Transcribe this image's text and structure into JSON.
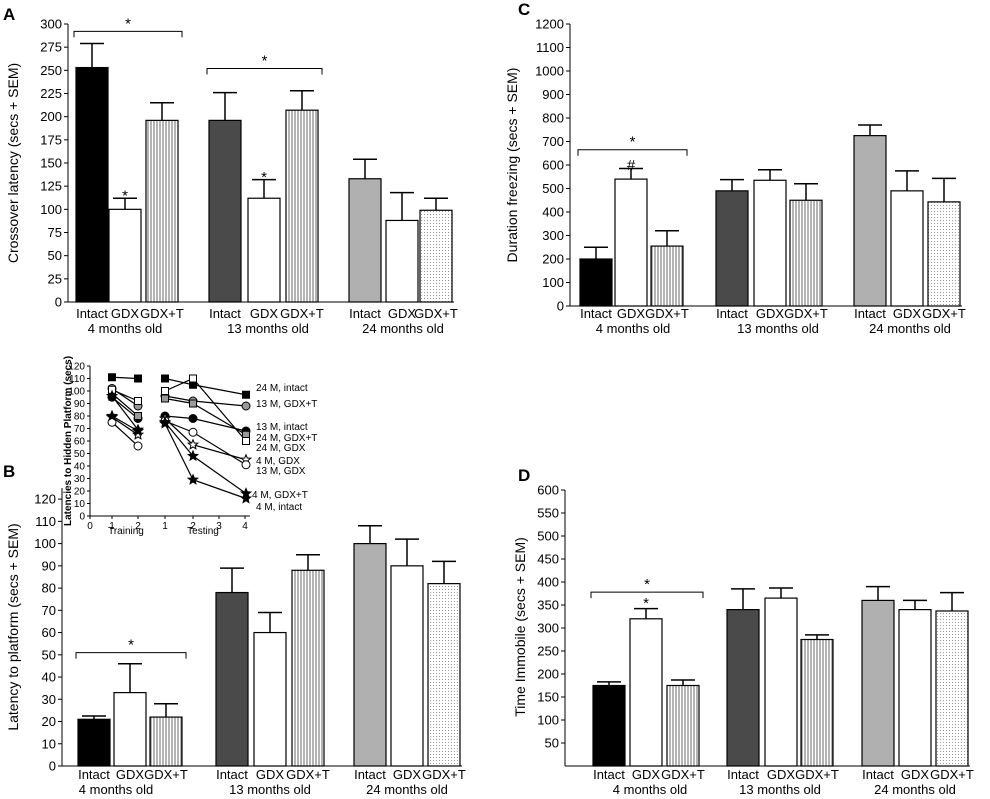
{
  "chart_data": [
    {
      "panel": "A",
      "type": "bar",
      "ylabel": "Crossover latency (secs + SEM)",
      "ylim": [
        0,
        300
      ],
      "yticks": [
        0,
        25,
        50,
        75,
        100,
        125,
        150,
        175,
        200,
        225,
        250,
        275,
        300
      ],
      "categories": [
        "Intact",
        "GDX",
        "GDX+T",
        "Intact",
        "GDX",
        "GDX+T",
        "Intact",
        "GDX",
        "GDX+T"
      ],
      "groups": [
        "4 months old",
        "13 months old",
        "24 months old"
      ],
      "values": [
        253,
        100,
        196,
        196,
        112,
        207,
        133,
        88,
        99
      ],
      "errors": [
        26,
        12,
        19,
        30,
        20,
        21,
        21,
        30,
        13
      ],
      "annotations": [
        {
          "text": "*",
          "kind": "bracket",
          "from": 0,
          "to": 2,
          "y": 292
        },
        {
          "text": "*",
          "kind": "bracket",
          "from": 3,
          "to": 5,
          "y": 252
        },
        {
          "text": "*",
          "kind": "bar",
          "bar": 1,
          "y": 114
        },
        {
          "text": "*",
          "kind": "bar",
          "bar": 4,
          "y": 134
        }
      ]
    },
    {
      "panel": "B",
      "type": "bar",
      "ylabel": "Latency to platform (secs + SEM)",
      "ylim": [
        0,
        125
      ],
      "yticks": [
        0,
        10,
        20,
        30,
        40,
        50,
        60,
        70,
        80,
        90,
        100,
        110,
        120
      ],
      "categories": [
        "Intact",
        "GDX",
        "GDX+T",
        "Intact",
        "GDX",
        "GDX+T",
        "Intact",
        "GDX",
        "GDX+T"
      ],
      "groups": [
        "4 months old",
        "13 months old",
        "24 months old"
      ],
      "values": [
        21,
        33,
        22,
        78,
        60,
        88,
        100,
        90,
        82
      ],
      "errors": [
        1.5,
        13,
        6,
        11,
        9,
        7,
        8,
        12,
        10
      ],
      "annotations": [
        {
          "text": "*",
          "kind": "bracket",
          "from": 0,
          "to": 2,
          "y": 51
        }
      ]
    },
    {
      "panel": "B-inset",
      "type": "line",
      "ylabel": "Latencies to Hidden Platform (secs)",
      "xlabel_groups": [
        "Training",
        "Testing"
      ],
      "x_ticks": [
        "0",
        "1",
        "2",
        "1",
        "2",
        "3",
        "4"
      ],
      "ylim": [
        0,
        120
      ],
      "yticks": [
        0,
        10,
        20,
        30,
        40,
        50,
        60,
        70,
        80,
        90,
        100,
        110,
        120
      ],
      "series": [
        {
          "name": "24 M, intact",
          "values": [
            111,
            110,
            110,
            105,
            97
          ],
          "marker": "square-filled"
        },
        {
          "name": "13 M, GDX+T",
          "values": [
            102,
            88,
            96,
            92,
            88
          ],
          "marker": "circle-gray"
        },
        {
          "name": "13 M, intact",
          "values": [
            95,
            78,
            80,
            78,
            68
          ],
          "marker": "circle-filled"
        },
        {
          "name": "24 M, GDX+T",
          "values": [
            98,
            80,
            94,
            90,
            65
          ],
          "marker": "square-gray"
        },
        {
          "name": "24 M, GDX",
          "values": [
            101,
            92,
            100,
            110,
            60
          ],
          "marker": "square-open"
        },
        {
          "name": "4 M, GDX",
          "values": [
            79,
            65,
            78,
            57,
            45
          ],
          "marker": "star-open"
        },
        {
          "name": "13 M, GDX",
          "values": [
            75,
            56,
            76,
            67,
            41
          ],
          "marker": "circle-open"
        },
        {
          "name": "4 M, GDX+T",
          "values": [
            80,
            68,
            75,
            48,
            18
          ],
          "marker": "star-filled"
        },
        {
          "name": "4 M, intact",
          "values": [
            96,
            69,
            74,
            29,
            14
          ],
          "marker": "star-filled"
        }
      ]
    },
    {
      "panel": "C",
      "type": "bar",
      "ylabel": "Duration freezing (secs + SEM)",
      "ylim": [
        0,
        1200
      ],
      "yticks": [
        0,
        100,
        200,
        300,
        400,
        500,
        600,
        700,
        800,
        900,
        1000,
        1100,
        1200
      ],
      "categories": [
        "Intact",
        "GDX",
        "GDX+T",
        "Intact",
        "GDX",
        "GDX+T",
        "Intact",
        "GDX",
        "GDX+T"
      ],
      "groups": [
        "4 months old",
        "13 months old",
        "24 months old"
      ],
      "values": [
        200,
        540,
        255,
        490,
        535,
        450,
        725,
        490,
        443
      ],
      "errors": [
        50,
        45,
        65,
        48,
        45,
        70,
        45,
        85,
        100
      ],
      "annotations": [
        {
          "text": "*",
          "kind": "bracket",
          "from": 0,
          "to": 2,
          "y": 665
        },
        {
          "text": "#",
          "kind": "bar",
          "bar": 1,
          "y": 595
        }
      ]
    },
    {
      "panel": "D",
      "type": "bar",
      "ylabel": "Time Immobile (secs + SEM)",
      "ylim": [
        0,
        600
      ],
      "yticks": [
        50,
        100,
        150,
        200,
        250,
        300,
        350,
        400,
        450,
        500,
        550,
        600
      ],
      "categories": [
        "Intact",
        "GDX",
        "GDX+T",
        "Intact",
        "GDX",
        "GDX+T",
        "Intact",
        "GDX",
        "GDX+T"
      ],
      "groups": [
        "4 months old",
        "13 months old",
        "24 months old"
      ],
      "values": [
        175,
        320,
        175,
        340,
        365,
        275,
        360,
        340,
        337
      ],
      "errors": [
        8,
        22,
        12,
        45,
        22,
        10,
        30,
        20,
        40
      ],
      "annotations": [
        {
          "text": "*",
          "kind": "bracket",
          "from": 0,
          "to": 2,
          "y": 378
        },
        {
          "text": "*",
          "kind": "bar",
          "bar": 1,
          "y": 352
        }
      ]
    }
  ]
}
